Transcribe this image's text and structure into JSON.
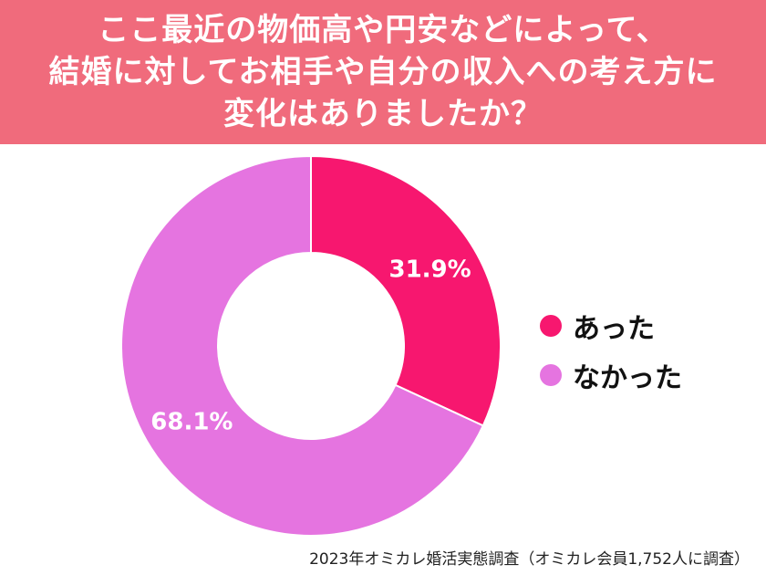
{
  "header": {
    "title_lines": [
      "ここ最近の物価高や円安などによって、",
      "結婚に対してお相手や自分の収入への考え方に",
      "変化はありましたか？"
    ]
  },
  "chart_data": {
    "type": "pie",
    "categories": [
      "あった",
      "なかった"
    ],
    "values": [
      31.9,
      68.1
    ],
    "value_labels": [
      "31.9%",
      "68.1%"
    ],
    "colors": [
      "#f7176f",
      "#e574e0"
    ],
    "legend_position": "right",
    "donut": true
  },
  "source": "2023年オミカレ婚活実態調査（オミカレ会員1,752人に調査）"
}
